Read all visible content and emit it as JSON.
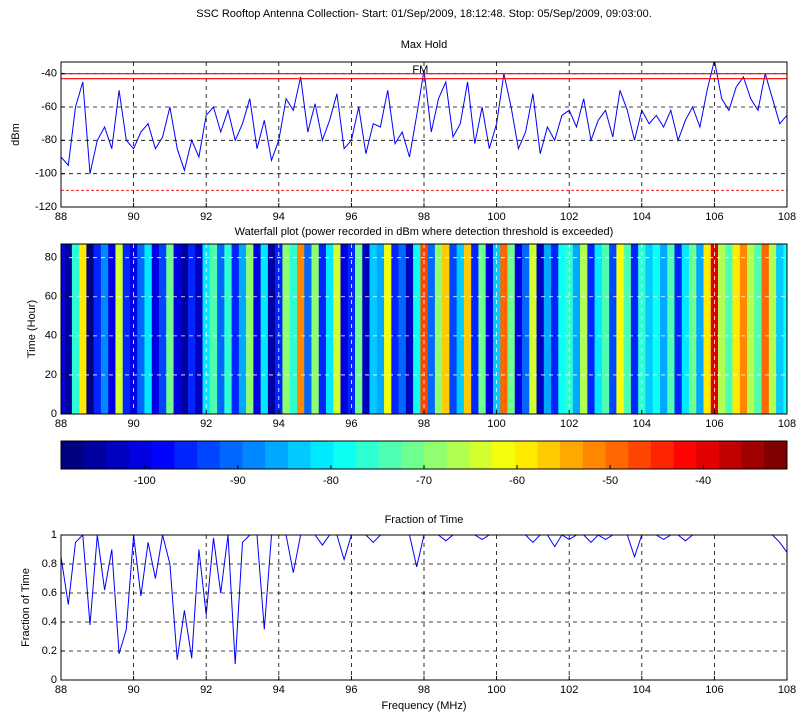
{
  "title": "SSC Rooftop Antenna Collection- Start: 01/Sep/2009, 18:12:48. Stop:  05/Sep/2009, 09:03:00.",
  "chart_data": [
    {
      "type": "line",
      "title": "Max Hold",
      "ylabel": "dBm",
      "annotation": {
        "text": "FM",
        "x": 97.9,
        "y": -38
      },
      "xlim": [
        88,
        108
      ],
      "xticks": [
        88,
        90,
        92,
        94,
        96,
        98,
        100,
        102,
        104,
        106,
        108
      ],
      "ylim": [
        -120,
        -33
      ],
      "yticks": [
        -120,
        -100,
        -80,
        -60,
        -40
      ],
      "grid": true,
      "color": "#0000ff",
      "reference_lines": [
        {
          "value": -40,
          "color": "#ff0000",
          "style": "solid"
        },
        {
          "value": -43,
          "color": "#ff0000",
          "style": "solid"
        },
        {
          "value": -110,
          "color": "#ff0000",
          "style": "dashed"
        }
      ],
      "x": [
        88.0,
        88.2,
        88.4,
        88.6,
        88.8,
        89.0,
        89.2,
        89.4,
        89.6,
        89.8,
        90.0,
        90.2,
        90.4,
        90.6,
        90.8,
        91.0,
        91.2,
        91.4,
        91.6,
        91.8,
        92.0,
        92.2,
        92.4,
        92.6,
        92.8,
        93.0,
        93.2,
        93.4,
        93.6,
        93.8,
        94.0,
        94.2,
        94.4,
        94.6,
        94.8,
        95.0,
        95.2,
        95.4,
        95.6,
        95.8,
        96.0,
        96.2,
        96.4,
        96.6,
        96.8,
        97.0,
        97.2,
        97.4,
        97.6,
        97.8,
        98.0,
        98.2,
        98.4,
        98.6,
        98.8,
        99.0,
        99.2,
        99.4,
        99.6,
        99.8,
        100.0,
        100.2,
        100.4,
        100.6,
        100.8,
        101.0,
        101.2,
        101.4,
        101.6,
        101.8,
        102.0,
        102.2,
        102.4,
        102.6,
        102.8,
        103.0,
        103.2,
        103.4,
        103.6,
        103.8,
        104.0,
        104.2,
        104.4,
        104.6,
        104.8,
        105.0,
        105.2,
        105.4,
        105.6,
        105.8,
        106.0,
        106.2,
        106.4,
        106.6,
        106.8,
        107.0,
        107.2,
        107.4,
        107.6,
        107.8,
        108.0
      ],
      "values": [
        -90,
        -95,
        -60,
        -45,
        -100,
        -80,
        -72,
        -85,
        -50,
        -80,
        -85,
        -75,
        -70,
        -85,
        -78,
        -60,
        -85,
        -98,
        -80,
        -90,
        -65,
        -60,
        -75,
        -62,
        -80,
        -70,
        -55,
        -85,
        -68,
        -92,
        -80,
        -55,
        -62,
        -42,
        -75,
        -58,
        -80,
        -68,
        -52,
        -85,
        -80,
        -60,
        -88,
        -70,
        -72,
        -50,
        -82,
        -75,
        -90,
        -65,
        -38,
        -75,
        -55,
        -45,
        -78,
        -70,
        -45,
        -82,
        -60,
        -85,
        -70,
        -40,
        -60,
        -85,
        -75,
        -52,
        -88,
        -72,
        -80,
        -65,
        -62,
        -72,
        -55,
        -80,
        -68,
        -62,
        -78,
        -50,
        -62,
        -80,
        -62,
        -70,
        -65,
        -72,
        -62,
        -80,
        -68,
        -60,
        -72,
        -50,
        -32,
        -55,
        -62,
        -48,
        -42,
        -55,
        -62,
        -40,
        -55,
        -70,
        -65
      ]
    },
    {
      "type": "heatmap",
      "title": "Waterfall plot (power recorded in dBm where detection threshold is exceeded)",
      "ylabel": "Time (Hour)",
      "xlim": [
        88,
        108
      ],
      "xticks": [
        88,
        90,
        92,
        94,
        96,
        98,
        100,
        102,
        104,
        106,
        108
      ],
      "ylim": [
        0,
        87
      ],
      "yticks": [
        0,
        20,
        40,
        60,
        80
      ],
      "grid": true,
      "colorbar": {
        "lim": [
          -109,
          -31
        ],
        "ticks": [
          -100,
          -90,
          -80,
          -70,
          -60,
          -50,
          -40
        ],
        "levels": 32,
        "colormap": "jet"
      },
      "x": [
        88.0,
        88.2,
        88.4,
        88.6,
        88.8,
        89.0,
        89.2,
        89.4,
        89.6,
        89.8,
        90.0,
        90.2,
        90.4,
        90.6,
        90.8,
        91.0,
        91.2,
        91.4,
        91.6,
        91.8,
        92.0,
        92.2,
        92.4,
        92.6,
        92.8,
        93.0,
        93.2,
        93.4,
        93.6,
        93.8,
        94.0,
        94.2,
        94.4,
        94.6,
        94.8,
        95.0,
        95.2,
        95.4,
        95.6,
        95.8,
        96.0,
        96.2,
        96.4,
        96.6,
        96.8,
        97.0,
        97.2,
        97.4,
        97.6,
        97.8,
        98.0,
        98.2,
        98.4,
        98.6,
        98.8,
        99.0,
        99.2,
        99.4,
        99.6,
        99.8,
        100.0,
        100.2,
        100.4,
        100.6,
        100.8,
        101.0,
        101.2,
        101.4,
        101.6,
        101.8,
        102.0,
        102.2,
        102.4,
        102.6,
        102.8,
        103.0,
        103.2,
        103.4,
        103.6,
        103.8,
        104.0,
        104.2,
        104.4,
        104.6,
        104.8,
        105.0,
        105.2,
        105.4,
        105.6,
        105.8,
        106.0,
        106.2,
        106.4,
        106.6,
        106.8,
        107.0,
        107.2,
        107.4,
        107.6,
        107.8,
        108.0
      ],
      "values": [
        -100,
        -105,
        -75,
        -58,
        -108,
        -95,
        -88,
        -100,
        -65,
        -95,
        -100,
        -90,
        -82,
        -100,
        -92,
        -72,
        -100,
        -106,
        -95,
        -104,
        -80,
        -74,
        -90,
        -76,
        -95,
        -85,
        -68,
        -100,
        -82,
        -105,
        -95,
        -68,
        -76,
        -52,
        -90,
        -70,
        -95,
        -82,
        -64,
        -100,
        -95,
        -72,
        -102,
        -84,
        -86,
        -62,
        -96,
        -90,
        -104,
        -78,
        -48,
        -90,
        -68,
        -56,
        -92,
        -84,
        -56,
        -96,
        -72,
        -100,
        -84,
        -50,
        -72,
        -100,
        -90,
        -64,
        -102,
        -86,
        -95,
        -78,
        -75,
        -86,
        -66,
        -95,
        -82,
        -74,
        -92,
        -62,
        -74,
        -95,
        -76,
        -84,
        -78,
        -86,
        -74,
        -95,
        -82,
        -72,
        -86,
        -60,
        -40,
        -66,
        -74,
        -58,
        -52,
        -66,
        -74,
        -50,
        -66,
        -84,
        -78
      ]
    },
    {
      "type": "line",
      "title": "Fraction of Time",
      "ylabel": "Fraction of Time",
      "xlabel": "Frequency (MHz)",
      "xlim": [
        88,
        108
      ],
      "xticks": [
        88,
        90,
        92,
        94,
        96,
        98,
        100,
        102,
        104,
        106,
        108
      ],
      "ylim": [
        0,
        1
      ],
      "yticks": [
        0,
        0.2,
        0.4,
        0.6,
        0.8,
        1
      ],
      "grid": true,
      "color": "#0000ff",
      "x": [
        88.0,
        88.2,
        88.4,
        88.6,
        88.8,
        89.0,
        89.2,
        89.4,
        89.6,
        89.8,
        90.0,
        90.2,
        90.4,
        90.6,
        90.8,
        91.0,
        91.2,
        91.4,
        91.6,
        91.8,
        92.0,
        92.2,
        92.4,
        92.6,
        92.8,
        93.0,
        93.2,
        93.4,
        93.6,
        93.8,
        94.0,
        94.2,
        94.4,
        94.6,
        94.8,
        95.0,
        95.2,
        95.4,
        95.6,
        95.8,
        96.0,
        96.2,
        96.4,
        96.6,
        96.8,
        97.0,
        97.2,
        97.4,
        97.6,
        97.8,
        98.0,
        98.2,
        98.4,
        98.6,
        98.8,
        99.0,
        99.2,
        99.4,
        99.6,
        99.8,
        100.0,
        100.2,
        100.4,
        100.6,
        100.8,
        101.0,
        101.2,
        101.4,
        101.6,
        101.8,
        102.0,
        102.2,
        102.4,
        102.6,
        102.8,
        103.0,
        103.2,
        103.4,
        103.6,
        103.8,
        104.0,
        104.2,
        104.4,
        104.6,
        104.8,
        105.0,
        105.2,
        105.4,
        105.6,
        105.8,
        106.0,
        106.2,
        106.4,
        106.6,
        106.8,
        107.0,
        107.2,
        107.4,
        107.6,
        107.8,
        108.0
      ],
      "values": [
        0.85,
        0.52,
        0.95,
        1,
        0.38,
        1,
        0.62,
        0.9,
        0.18,
        0.35,
        1,
        0.58,
        0.95,
        0.7,
        1,
        0.8,
        0.14,
        0.48,
        0.15,
        0.9,
        0.45,
        0.98,
        0.6,
        1,
        0.11,
        0.95,
        1,
        1,
        0.35,
        1,
        1,
        1,
        0.74,
        1,
        1,
        1,
        0.93,
        1,
        1,
        0.83,
        1,
        1,
        1,
        0.95,
        1,
        1,
        1,
        1,
        1,
        0.78,
        1,
        1,
        1,
        0.96,
        1,
        1,
        1,
        1,
        0.97,
        1,
        1,
        1,
        1,
        1,
        1,
        0.95,
        1,
        1,
        0.92,
        1,
        0.97,
        1,
        1,
        0.95,
        1,
        0.97,
        1,
        1,
        1,
        0.85,
        1,
        1,
        1,
        0.97,
        1,
        1,
        0.96,
        1,
        1,
        1,
        1,
        1,
        1,
        1,
        1,
        1,
        1,
        1,
        1,
        0.95,
        0.88
      ]
    }
  ]
}
